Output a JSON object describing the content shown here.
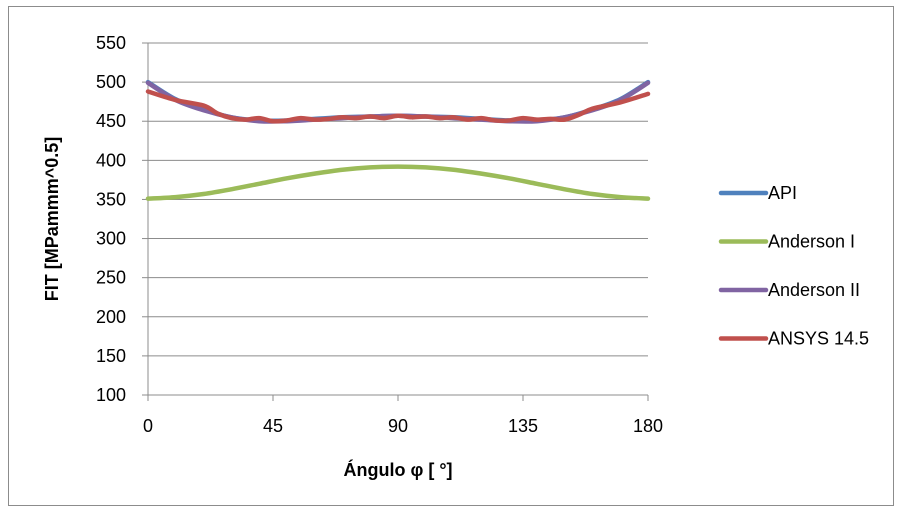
{
  "chart_data": {
    "type": "line",
    "title": "",
    "xlabel": "Ángulo φ [  °]",
    "ylabel": "FIT [MPammm^0.5]",
    "xlim": [
      0,
      180
    ],
    "ylim": [
      100,
      550
    ],
    "xticks": [
      0,
      45,
      90,
      135,
      180
    ],
    "yticks": [
      100,
      150,
      200,
      250,
      300,
      350,
      400,
      450,
      500,
      550
    ],
    "grid": true,
    "legend_position": "right",
    "series": [
      {
        "name": "API",
        "color": "#4f81bd",
        "x": [
          0,
          10,
          20,
          30,
          40,
          50,
          60,
          70,
          80,
          90,
          100,
          110,
          120,
          130,
          140,
          150,
          160,
          170,
          180
        ],
        "y": [
          500,
          478,
          465,
          455,
          451,
          451,
          453,
          455,
          456,
          457,
          456,
          455,
          453,
          451,
          451,
          455,
          465,
          478,
          500
        ]
      },
      {
        "name": "Anderson I",
        "color": "#9bbb59",
        "x": [
          0,
          10,
          20,
          30,
          40,
          50,
          60,
          70,
          80,
          90,
          100,
          110,
          120,
          130,
          140,
          150,
          160,
          170,
          180
        ],
        "y": [
          351,
          353,
          357,
          363,
          370,
          377,
          383,
          388,
          391,
          392,
          391,
          388,
          383,
          377,
          370,
          363,
          357,
          353,
          351
        ]
      },
      {
        "name": "Anderson II",
        "color": "#8064a2",
        "x": [
          0,
          10,
          20,
          30,
          40,
          50,
          60,
          70,
          80,
          90,
          100,
          110,
          120,
          130,
          140,
          150,
          160,
          170,
          180
        ],
        "y": [
          499,
          477,
          464,
          455,
          450,
          450,
          452,
          454,
          456,
          457,
          456,
          454,
          452,
          450,
          450,
          455,
          464,
          477,
          499
        ]
      },
      {
        "name": "ANSYS 14.5",
        "color": "#c0504d",
        "x": [
          0,
          10,
          20,
          25,
          30,
          35,
          40,
          45,
          50,
          55,
          60,
          65,
          70,
          75,
          80,
          85,
          90,
          95,
          100,
          105,
          110,
          115,
          120,
          125,
          130,
          135,
          140,
          145,
          150,
          155,
          160,
          170,
          180
        ],
        "y": [
          488,
          477,
          470,
          460,
          454,
          452,
          454,
          450,
          451,
          454,
          452,
          453,
          455,
          454,
          456,
          454,
          457,
          455,
          456,
          454,
          455,
          452,
          454,
          451,
          451,
          454,
          452,
          453,
          452,
          458,
          466,
          474,
          485
        ]
      }
    ]
  }
}
